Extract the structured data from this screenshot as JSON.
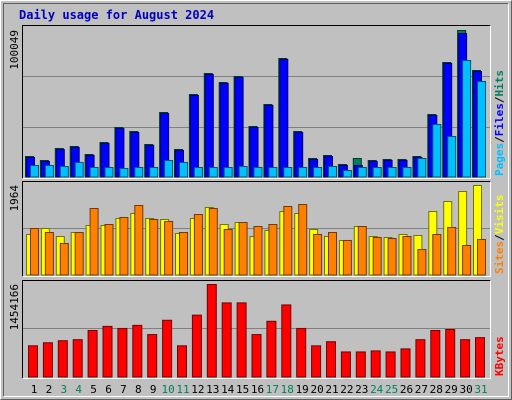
{
  "chart_data": [
    {
      "type": "bar",
      "title": "Daily usage for August 2024",
      "legend_separator": "/",
      "ylim": [
        0,
        100049
      ],
      "yticks": [
        100049
      ],
      "series": [
        {
          "name": "Hits",
          "color": "#00805c",
          "values": [
            14290,
            11570,
            19740,
            21100,
            15650,
            23820,
            34030,
            31310,
            22460,
            44240,
            19060,
            56490,
            70780,
            64660,
            68740,
            34710,
            49680,
            80990,
            31310,
            12930,
            14970,
            8850,
            12930,
            11570,
            12250,
            12250,
            14290,
            42880,
            78270,
            100049,
            72820
          ]
        },
        {
          "name": "Files",
          "color": "#0000ff",
          "values": [
            13600,
            10900,
            19000,
            20400,
            15000,
            23100,
            33300,
            30600,
            21800,
            43500,
            18400,
            55800,
            70100,
            64000,
            68000,
            34000,
            49000,
            80300,
            30600,
            12200,
            14300,
            8200,
            8170,
            10900,
            11600,
            11600,
            13600,
            42200,
            77600,
            98000,
            72100
          ]
        },
        {
          "name": "Pages",
          "color": "#00c0ff",
          "values": [
            8170,
            8170,
            7490,
            10210,
            6810,
            6810,
            6130,
            6810,
            6810,
            11570,
            10210,
            6810,
            6810,
            6810,
            7490,
            6810,
            6810,
            6810,
            6810,
            6810,
            7490,
            4760,
            6810,
            6810,
            6810,
            6810,
            12930,
            36070,
            27900,
            79630,
            65340
          ]
        }
      ]
    },
    {
      "type": "bar",
      "legend_separator": "/",
      "ylim": [
        0,
        1964
      ],
      "yticks": [
        1964
      ],
      "series": [
        {
          "name": "Visits",
          "color": "#ffff00",
          "values": [
            895,
            1026,
            851,
            938,
            1091,
            1091,
            1244,
            1353,
            1244,
            1222,
            916,
            1244,
            1484,
            1113,
            1156,
            851,
            982,
            1396,
            1353,
            1004,
            851,
            764,
            1069,
            851,
            829,
            895,
            873,
            1396,
            1615,
            1833,
            1964
          ]
        },
        {
          "name": "Sites",
          "color": "#ff8000",
          "values": [
            1026,
            938,
            698,
            938,
            1462,
            1113,
            1266,
            1527,
            1222,
            1178,
            938,
            1331,
            1462,
            1004,
            1156,
            1069,
            1113,
            1506,
            1549,
            895,
            938,
            764,
            1069,
            829,
            807,
            851,
            567,
            895,
            1047,
            655,
            786
          ]
        }
      ]
    },
    {
      "type": "bar",
      "ylim": [
        0,
        1454166
      ],
      "yticks": [
        1454166
      ],
      "categories": [
        "1",
        "2",
        "3",
        "4",
        "5",
        "6",
        "7",
        "8",
        "9",
        "10",
        "11",
        "12",
        "13",
        "14",
        "15",
        "16",
        "17",
        "18",
        "19",
        "20",
        "21",
        "22",
        "23",
        "24",
        "25",
        "26",
        "27",
        "28",
        "29",
        "30",
        "31"
      ],
      "category_colors": [
        "#000000",
        "#000000",
        "#00805c",
        "#00805c",
        "#000000",
        "#000000",
        "#000000",
        "#000000",
        "#000000",
        "#00805c",
        "#00805c",
        "#000000",
        "#000000",
        "#000000",
        "#000000",
        "#000000",
        "#00805c",
        "#00805c",
        "#000000",
        "#000000",
        "#000000",
        "#000000",
        "#000000",
        "#00805c",
        "#00805c",
        "#000000",
        "#000000",
        "#000000",
        "#000000",
        "#000000",
        "#00805c"
      ],
      "series": [
        {
          "name": "KBytes",
          "color": "#ff0000",
          "values": [
            495380,
            543320,
            575280,
            591260,
            735080,
            799000,
            767040,
            814980,
            671160,
            894880,
            495380,
            974780,
            1454166,
            1166540,
            1166540,
            671160,
            878900,
            1134580,
            767040,
            495380,
            559300,
            399500,
            399500,
            415480,
            399500,
            447440,
            591260,
            735080,
            751060,
            591260,
            623220
          ]
        }
      ]
    }
  ]
}
